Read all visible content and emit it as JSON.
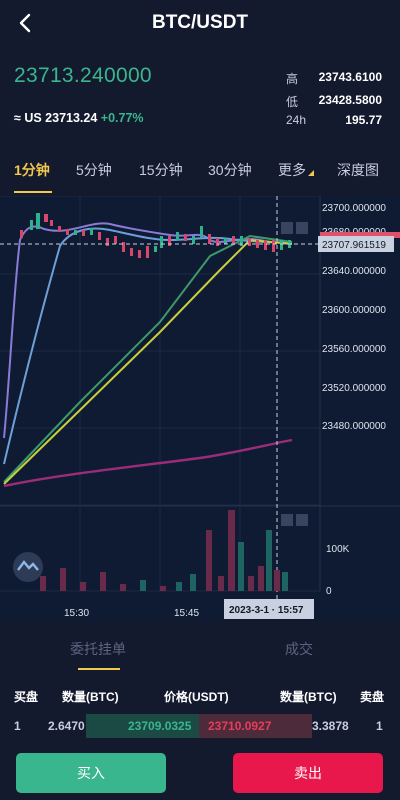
{
  "header": {
    "title": "BTC/USDT",
    "back_icon": "chevron-left-icon"
  },
  "ticker": {
    "last_price": "23713.240000",
    "usd_prefix": "≈ US 23713.24",
    "change": "+0.77%",
    "high_label": "高",
    "high_value": "23743.6100",
    "low_label": "低",
    "low_value": "23428.5800",
    "vol_label": "24h",
    "vol_value": "195.77"
  },
  "tabs": [
    {
      "label": "1分钟",
      "active": true
    },
    {
      "label": "5分钟"
    },
    {
      "label": "15分钟"
    },
    {
      "label": "30分钟"
    },
    {
      "label": "更多"
    },
    {
      "label": "深度图"
    }
  ],
  "chart": {
    "price_ticks": [
      "23700.000000",
      "23680.000000",
      "23640.000000",
      "23600.000000",
      "23560.000000",
      "23520.000000",
      "23480.000000"
    ],
    "current_price": "23707.961519",
    "volume_ticks": [
      "100K",
      "0"
    ],
    "time_ticks": [
      "15:30",
      "15:45"
    ],
    "crosshair_time": "2023-3-1 · 15:57",
    "colors": {
      "up": "#2fb08f",
      "down": "#d8476a",
      "bg": "#0f1b33"
    }
  },
  "order_tabs": [
    {
      "label": "委托挂单",
      "active": true
    },
    {
      "label": "成交"
    }
  ],
  "book": {
    "columns": {
      "bid": "买盘",
      "bid_qty": "数量(BTC)",
      "price": "价格(USDT)",
      "ask_qty": "数量(BTC)",
      "ask": "卖盘"
    },
    "rows": [
      {
        "bid_idx": "1",
        "bid_qty": "2.6470",
        "bid_price": "23709.0325",
        "ask_price": "23710.0927",
        "ask_qty": "3.3878",
        "ask_idx": "1"
      }
    ]
  },
  "actions": {
    "buy": "买入",
    "sell": "卖出"
  }
}
